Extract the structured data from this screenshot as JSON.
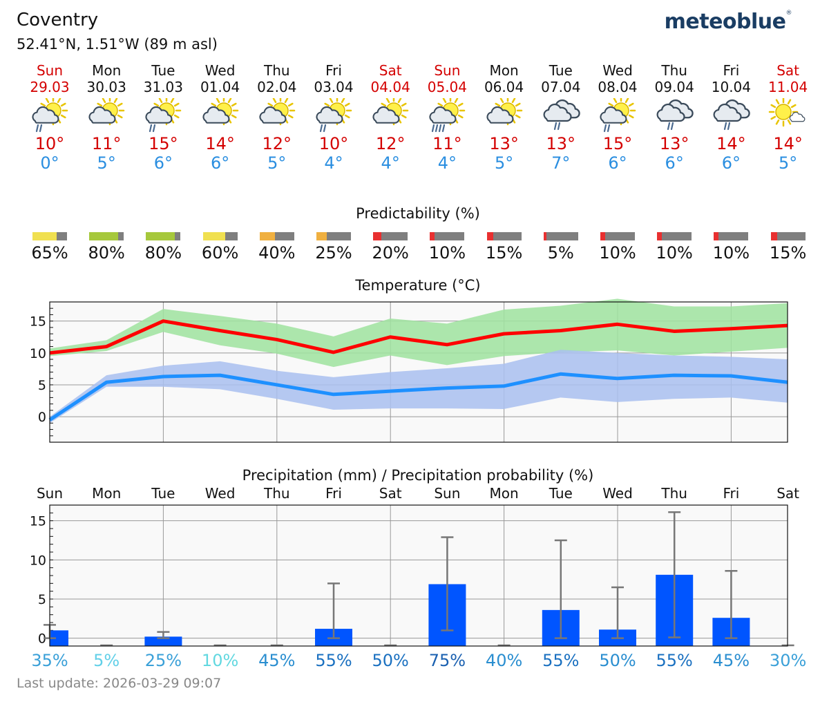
{
  "header": {
    "location": "Coventry",
    "coordinates": "52.41°N, 1.51°W (89 m asl)",
    "brand": "meteoblue",
    "brand_mark": "®"
  },
  "days": [
    {
      "name": "Sun",
      "date": "29.03",
      "weekend": true,
      "icon": "sun-cloud-rain-icon",
      "tmax": "10°",
      "tmin": "0°",
      "pred": "65%",
      "pred_value": 65,
      "pred_color": "#f0e050",
      "prob": "35%",
      "prob_color": "#3aa0d8"
    },
    {
      "name": "Mon",
      "date": "30.03",
      "weekend": false,
      "icon": "sun-cloud-icon",
      "tmax": "11°",
      "tmin": "5°",
      "pred": "80%",
      "pred_value": 80,
      "pred_color": "#a6c83c",
      "prob": "5%",
      "prob_color": "#62d0e8"
    },
    {
      "name": "Tue",
      "date": "31.03",
      "weekend": false,
      "icon": "sun-cloud-rain-icon",
      "tmax": "15°",
      "tmin": "6°",
      "pred": "80%",
      "pred_value": 80,
      "pred_color": "#a6c83c",
      "prob": "25%",
      "prob_color": "#3aa0d8"
    },
    {
      "name": "Wed",
      "date": "01.04",
      "weekend": false,
      "icon": "sun-cloud-icon",
      "tmax": "14°",
      "tmin": "6°",
      "pred": "60%",
      "pred_value": 60,
      "pred_color": "#f0e050",
      "prob": "10%",
      "prob_color": "#62d8e0"
    },
    {
      "name": "Thu",
      "date": "02.04",
      "weekend": false,
      "icon": "sun-cloud-icon",
      "tmax": "12°",
      "tmin": "5°",
      "pred": "40%",
      "pred_value": 40,
      "pred_color": "#f0b040",
      "prob": "45%",
      "prob_color": "#2a8ed0"
    },
    {
      "name": "Fri",
      "date": "03.04",
      "weekend": false,
      "icon": "sun-cloud-rain-icon",
      "tmax": "10°",
      "tmin": "4°",
      "pred": "25%",
      "pred_value": 25,
      "pred_color": "#f0b040",
      "prob": "55%",
      "prob_color": "#1a70c0"
    },
    {
      "name": "Sat",
      "date": "04.04",
      "weekend": true,
      "icon": "sun-cloud-icon",
      "tmax": "12°",
      "tmin": "4°",
      "pred": "20%",
      "pred_value": 20,
      "pred_color": "#e83030",
      "prob": "50%",
      "prob_color": "#1a70c0"
    },
    {
      "name": "Sun",
      "date": "05.04",
      "weekend": true,
      "icon": "sun-cloud-heavy-rain-icon",
      "tmax": "11°",
      "tmin": "4°",
      "pred": "10%",
      "pred_value": 10,
      "pred_color": "#e83030",
      "prob": "75%",
      "prob_color": "#1a60b0"
    },
    {
      "name": "Mon",
      "date": "06.04",
      "weekend": false,
      "icon": "sun-cloud-icon",
      "tmax": "13°",
      "tmin": "5°",
      "pred": "15%",
      "pred_value": 15,
      "pred_color": "#e83030",
      "prob": "40%",
      "prob_color": "#2a8ed0"
    },
    {
      "name": "Tue",
      "date": "07.04",
      "weekend": false,
      "icon": "cloud-rain-icon",
      "tmax": "13°",
      "tmin": "7°",
      "pred": "5%",
      "pred_value": 5,
      "pred_color": "#e83030",
      "prob": "55%",
      "prob_color": "#1a70c0"
    },
    {
      "name": "Wed",
      "date": "08.04",
      "weekend": false,
      "icon": "sun-cloud-rain-icon",
      "tmax": "15°",
      "tmin": "6°",
      "pred": "10%",
      "pred_value": 10,
      "pred_color": "#e83030",
      "prob": "50%",
      "prob_color": "#2a8ed0"
    },
    {
      "name": "Thu",
      "date": "09.04",
      "weekend": false,
      "icon": "cloud-rain-icon",
      "tmax": "13°",
      "tmin": "6°",
      "pred": "10%",
      "pred_value": 10,
      "pred_color": "#e83030",
      "prob": "55%",
      "prob_color": "#1a70c0"
    },
    {
      "name": "Fri",
      "date": "10.04",
      "weekend": false,
      "icon": "cloud-rain-icon",
      "tmax": "14°",
      "tmin": "6°",
      "pred": "10%",
      "pred_value": 10,
      "pred_color": "#e83030",
      "prob": "45%",
      "prob_color": "#2a8ed0"
    },
    {
      "name": "Sat",
      "date": "11.04",
      "weekend": true,
      "icon": "sun-small-cloud-icon",
      "tmax": "14°",
      "tmin": "5°",
      "pred": "15%",
      "pred_value": 15,
      "pred_color": "#e83030",
      "prob": "30%",
      "prob_color": "#3aa0d8"
    }
  ],
  "predictability": {
    "title": "Predictability (%)"
  },
  "chart_data": [
    {
      "type": "line",
      "title": "Temperature (°C)",
      "ylim": [
        -4,
        18
      ],
      "yticks": [
        0,
        5,
        10,
        15
      ],
      "x": [
        0,
        1,
        2,
        3,
        4,
        5,
        6,
        7,
        8,
        9,
        10,
        11,
        12,
        13
      ],
      "series": [
        {
          "name": "max",
          "color": "#ff0000",
          "values": [
            10,
            11,
            15,
            13.5,
            12.1,
            10.1,
            12.5,
            11.3,
            13,
            13.5,
            14.5,
            13.4,
            13.8,
            14.3
          ],
          "band_low": [
            9.5,
            10.3,
            13.3,
            11.2,
            9.9,
            7.8,
            9.6,
            8.1,
            9.5,
            10.1,
            10.4,
            9.6,
            10.2,
            10.8
          ],
          "band_high": [
            10.7,
            12,
            16.9,
            15.8,
            14.6,
            12.6,
            15.4,
            14.6,
            16.8,
            17.4,
            18.5,
            17.3,
            17.3,
            17.8
          ]
        },
        {
          "name": "min",
          "color": "#1e90ff",
          "values": [
            -0.5,
            5.4,
            6.3,
            6.5,
            5,
            3.5,
            4,
            4.5,
            4.8,
            6.7,
            6,
            6.5,
            6.4,
            5.4
          ],
          "band_low": [
            -1,
            4.7,
            4.7,
            4.3,
            2.8,
            1.1,
            1.3,
            1.3,
            1.2,
            3,
            2.3,
            2.8,
            3,
            2.2
          ],
          "band_high": [
            0,
            6.5,
            8,
            8.7,
            7.2,
            6.2,
            7,
            7.6,
            8.3,
            10.5,
            10,
            9.6,
            9.4,
            9
          ]
        }
      ]
    },
    {
      "type": "bar",
      "title": "Precipitation (mm) / Precipitation probability (%)",
      "ylim": [
        -1,
        17
      ],
      "yticks": [
        0,
        5,
        10,
        15
      ],
      "categories": [
        "Sun",
        "Mon",
        "Tue",
        "Wed",
        "Thu",
        "Fri",
        "Sat",
        "Sun",
        "Mon",
        "Tue",
        "Wed",
        "Thu",
        "Fri",
        "Sat"
      ],
      "values": [
        1,
        0,
        0.2,
        0,
        0,
        1.2,
        0,
        6.9,
        0,
        3.6,
        1.1,
        8.1,
        2.6,
        0
      ],
      "error_high": [
        1.7,
        0,
        0.8,
        0,
        0,
        7,
        0,
        12.9,
        0,
        12.5,
        6.5,
        16.1,
        8.6,
        0
      ],
      "error_low": [
        0,
        0,
        0,
        0,
        0,
        0,
        0,
        1,
        0,
        0,
        0,
        0.1,
        0,
        0
      ],
      "bar_color": "#0055ff"
    }
  ],
  "footer": {
    "last_update": "Last update: 2026-03-29 09:07"
  }
}
